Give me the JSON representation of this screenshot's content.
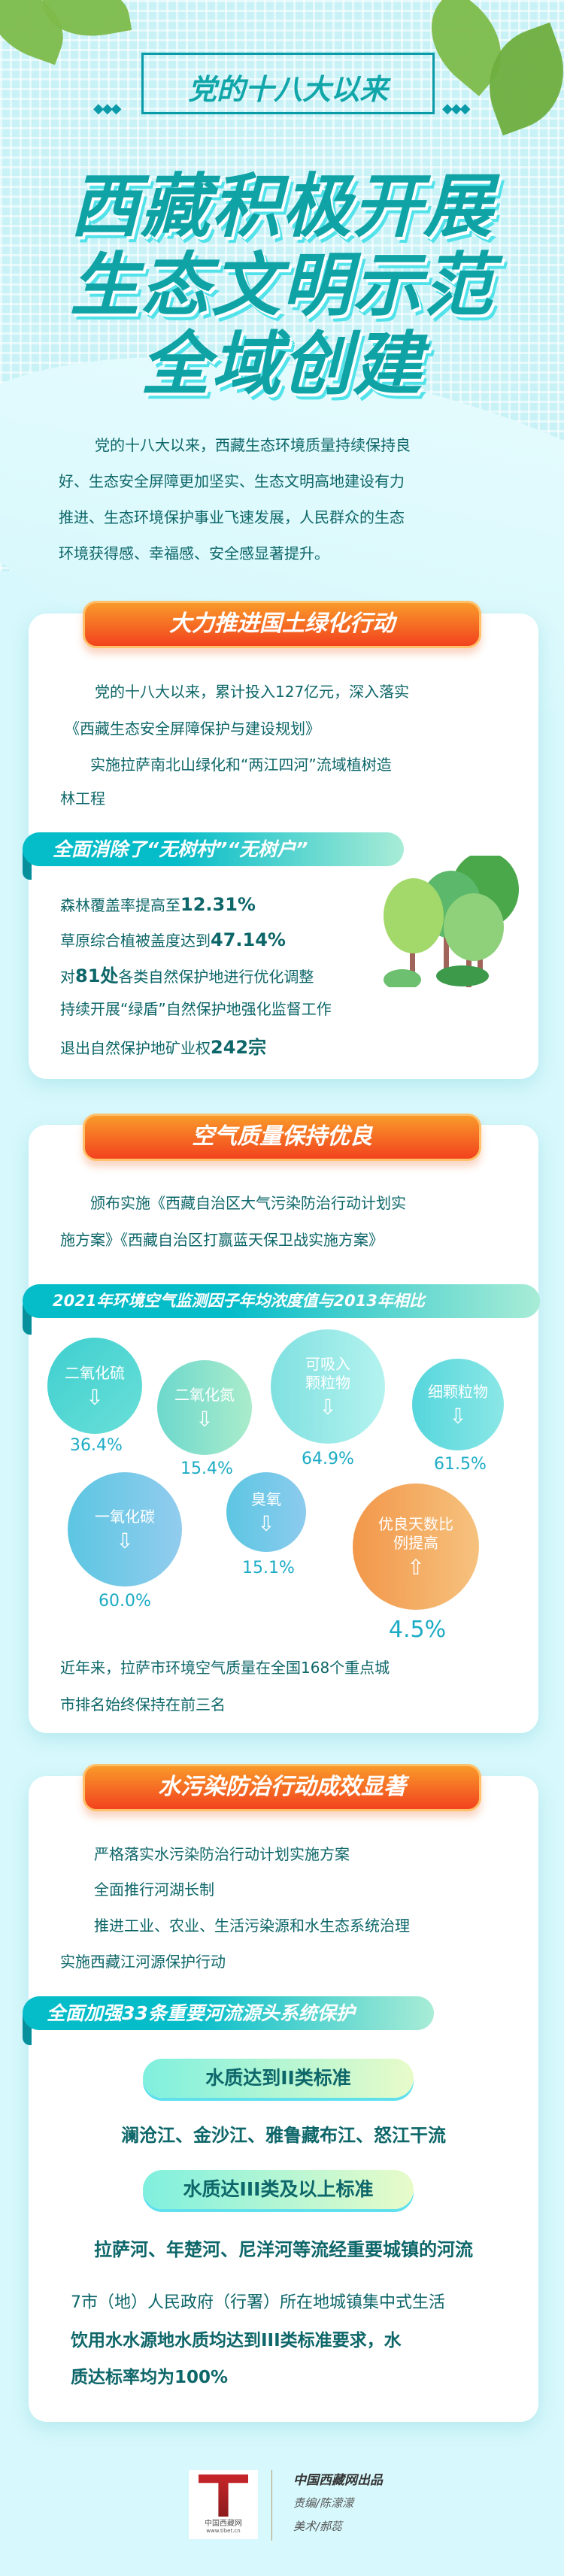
{
  "header": {
    "subtitle": "党的十八大以来",
    "title_lines": [
      "西藏积极开展",
      "生态文明示范",
      "全域创建"
    ]
  },
  "intro": [
    "党的十八大以来，西藏生态环境质量持续保持良",
    "好、生态安全屏障更加坚实、生态文明高地建设有力",
    "推进、生态环境保护事业飞速发展，人民群众的生态",
    "环境获得感、幸福感、安全感显著提升。"
  ],
  "section1": {
    "title": "大力推进国土绿化行动",
    "lines": [
      "党的十八大以来，累计投入127亿元，深入落实",
      "《西藏生态安全屏障保护与建设规划》",
      "实施拉萨南北山绿化和“两江四河”流域植树造",
      "林工程"
    ],
    "sub_title": "全面消除了“无树村”“无树户”",
    "items": [
      {
        "pre": "森林覆盖率提高至",
        "num": "12.31%",
        "post": ""
      },
      {
        "pre": "草原综合植被盖度达到",
        "num": "47.14%",
        "post": ""
      },
      {
        "pre": "对",
        "num": "81处",
        "post": "各类自然保护地进行优化调整"
      },
      {
        "pre": "持续开展“绿盾”自然保护地强化监督工作",
        "num": "",
        "post": ""
      },
      {
        "pre": "退出自然保护地矿业权",
        "num": "242宗",
        "post": ""
      }
    ]
  },
  "section2": {
    "title": "空气质量保持优良",
    "lines": [
      "颁布实施《西藏自治区大气污染防治行动计划实",
      "施方案》《西藏自治区打赢蓝天保卫战实施方案》"
    ],
    "sub_title": "2021年环境空气监测因子年均浓度值与2013年相比",
    "bubbles": [
      {
        "label": "二氧化硫",
        "value": "36.4%",
        "direction": "down"
      },
      {
        "label": "二氧化氮",
        "value": "15.4%",
        "direction": "down"
      },
      {
        "label": "可吸入颗粒物",
        "value": "64.9%",
        "direction": "down"
      },
      {
        "label": "细颗粒物",
        "value": "61.5%",
        "direction": "down"
      },
      {
        "label": "一氧化碳",
        "value": "60.0%",
        "direction": "down"
      },
      {
        "label": "臭氧",
        "value": "15.1%",
        "direction": "down"
      },
      {
        "label": "优良天数比例提高",
        "value": "4.5%",
        "direction": "up"
      }
    ],
    "closing": [
      "近年来，拉萨市环境空气质量在全国168个重点城",
      "市排名始终保持在前三名"
    ]
  },
  "section3": {
    "title": "水污染防治行动成效显著",
    "lines": [
      "严格落实水污染防治行动计划实施方案",
      "全面推行河湖长制",
      "推进工业、农业、生活污染源和水生态系统治理",
      "实施西藏江河源保护行动"
    ],
    "sub_title": "全面加强33条重要河流源头系统保护",
    "pill1": "水质达到II类标准",
    "rivers1": "澜沧江、金沙江、雅鲁藏布江、怒江干流",
    "pill2": "水质达III类及以上标准",
    "rivers2": "拉萨河、年楚河、尼洋河等流经重要城镇的河流",
    "closing": [
      "7市（地）人民政府（行署）所在地城镇集中式生活",
      "饮用水水源地水质均达到III类标准要求，水",
      "质达标率均为100%"
    ]
  },
  "footer": {
    "logo_text": "中国西藏网",
    "logo_url": "www.tibet.cn",
    "producer": "中国西藏网出品",
    "editor": "责编/陈濛濛",
    "art": "美术/郝蕊"
  },
  "colors": {
    "teal_text": "#0d6669",
    "orange_banner": "#f2421e",
    "teal_banner": "#05bcc9",
    "value": "#1cabc5"
  }
}
